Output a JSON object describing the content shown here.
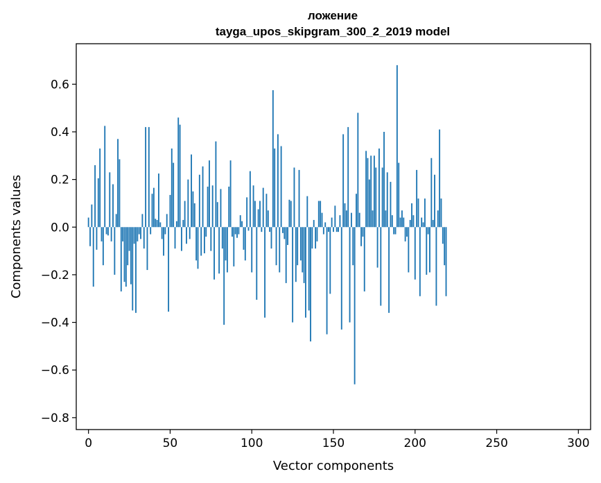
{
  "chart_data": {
    "type": "bar",
    "title_line1": "ложение",
    "title_line2": "tayga_upos_skipgram_300_2_2019 model",
    "xlabel": "Vector components",
    "ylabel": "Components values",
    "xlim": [
      -7.5,
      307.5
    ],
    "ylim": [
      -0.85,
      0.77
    ],
    "xticks": [
      0,
      50,
      100,
      150,
      200,
      250,
      300
    ],
    "xtick_labels": [
      "0",
      "50",
      "100",
      "150",
      "200",
      "250",
      "300"
    ],
    "yticks": [
      -0.8,
      -0.6,
      -0.4,
      -0.2,
      0.0,
      0.2,
      0.4,
      0.6
    ],
    "ytick_labels": [
      "−0.8",
      "−0.6",
      "−0.4",
      "−0.2",
      "0.0",
      "0.2",
      "0.4",
      "0.6"
    ],
    "bar_color": "#1f77b4",
    "values": [
      0.04,
      -0.08,
      0.095,
      -0.25,
      0.26,
      -0.095,
      0.205,
      0.33,
      -0.06,
      -0.16,
      0.425,
      -0.03,
      -0.035,
      0.23,
      -0.06,
      0.18,
      -0.2,
      0.055,
      0.37,
      0.285,
      -0.27,
      -0.06,
      -0.23,
      -0.25,
      -0.16,
      -0.1,
      -0.24,
      -0.35,
      -0.07,
      -0.36,
      -0.06,
      -0.03,
      -0.05,
      0.055,
      -0.09,
      0.42,
      -0.18,
      0.42,
      -0.03,
      0.14,
      0.165,
      0.035,
      0.03,
      0.225,
      0.02,
      -0.05,
      -0.12,
      -0.03,
      0.055,
      -0.355,
      0.135,
      0.33,
      0.27,
      -0.09,
      0.025,
      0.46,
      0.43,
      -0.1,
      0.03,
      0.11,
      -0.07,
      0.2,
      -0.05,
      0.305,
      0.15,
      0.1,
      -0.14,
      -0.175,
      0.22,
      -0.12,
      0.255,
      -0.11,
      -0.04,
      0.17,
      0.28,
      -0.1,
      0.175,
      -0.22,
      0.36,
      0.105,
      -0.195,
      0.16,
      -0.09,
      -0.41,
      -0.14,
      -0.19,
      0.17,
      0.28,
      -0.04,
      -0.165,
      -0.03,
      -0.045,
      -0.03,
      0.05,
      0.025,
      -0.095,
      -0.14,
      0.125,
      -0.015,
      0.235,
      -0.19,
      0.175,
      0.11,
      -0.305,
      0.075,
      0.11,
      -0.02,
      0.165,
      -0.38,
      0.14,
      0.07,
      -0.02,
      -0.09,
      0.575,
      0.33,
      -0.16,
      0.39,
      -0.19,
      0.34,
      -0.025,
      -0.05,
      -0.235,
      -0.075,
      0.115,
      0.11,
      -0.4,
      0.25,
      -0.23,
      -0.16,
      0.24,
      -0.14,
      -0.19,
      -0.235,
      -0.38,
      0.13,
      -0.35,
      -0.48,
      -0.09,
      0.03,
      -0.09,
      -0.06,
      0.11,
      0.11,
      0.06,
      -0.03,
      0.02,
      -0.45,
      -0.02,
      -0.28,
      0.04,
      -0.02,
      0.09,
      -0.02,
      -0.02,
      0.05,
      -0.43,
      0.39,
      0.1,
      0.07,
      0.42,
      -0.4,
      0.06,
      -0.16,
      -0.66,
      0.14,
      0.48,
      0.06,
      -0.08,
      -0.04,
      -0.27,
      0.32,
      0.29,
      0.2,
      0.3,
      0.07,
      0.3,
      0.25,
      -0.17,
      0.33,
      -0.33,
      0.25,
      0.4,
      0.07,
      0.23,
      -0.36,
      0.19,
      0.05,
      -0.03,
      -0.03,
      0.68,
      0.27,
      0.04,
      0.07,
      0.04,
      -0.06,
      -0.04,
      -0.19,
      0.03,
      0.1,
      0.05,
      -0.22,
      0.24,
      0.12,
      -0.29,
      0.04,
      0.02,
      0.12,
      -0.2,
      -0.03,
      -0.19,
      0.29,
      0.03,
      0.22,
      -0.33,
      0.07,
      0.41,
      0.12,
      -0.07,
      -0.16,
      -0.29
    ]
  }
}
